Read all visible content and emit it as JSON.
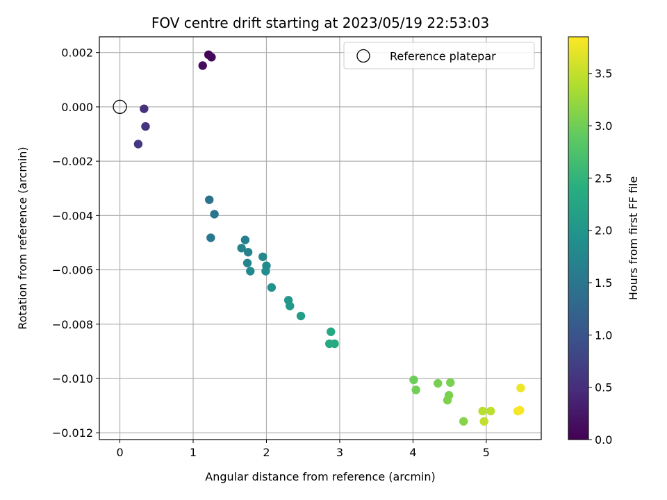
{
  "chart_data": {
    "type": "scatter",
    "title": "FOV centre drift starting at 2023/05/19 22:53:03",
    "xlabel": "Angular distance from reference (arcmin)",
    "ylabel": "Rotation from reference (arcmin)",
    "xlim": [
      -0.28,
      5.75
    ],
    "ylim": [
      -0.01225,
      0.00258
    ],
    "xticks": [
      0,
      1,
      2,
      3,
      4,
      5
    ],
    "yticks": [
      0.002,
      0.0,
      -0.002,
      -0.004,
      -0.006,
      -0.008,
      -0.01,
      -0.012
    ],
    "ytick_labels": [
      "0.002",
      "0.000",
      "−0.002",
      "−0.004",
      "−0.006",
      "−0.008",
      "−0.010",
      "−0.012"
    ],
    "grid": true,
    "colorscale": "viridis",
    "colorbar": {
      "label": "Hours from first FF file",
      "range": [
        0.0,
        3.85
      ],
      "ticks": [
        0.0,
        0.5,
        1.0,
        1.5,
        2.0,
        2.5,
        3.0,
        3.5
      ],
      "tick_labels": [
        "0.0",
        "0.5",
        "1.0",
        "1.5",
        "2.0",
        "2.5",
        "3.0",
        "3.5"
      ]
    },
    "legend": {
      "placement": "top-right",
      "entries": [
        "Reference platepar"
      ]
    },
    "reference_point": {
      "x": 0.0,
      "y": 0.0
    },
    "points": [
      {
        "x": 1.21,
        "y": 0.00192,
        "hours": 0.05
      },
      {
        "x": 1.25,
        "y": 0.00183,
        "hours": 0.08
      },
      {
        "x": 1.13,
        "y": 0.00152,
        "hours": 0.12
      },
      {
        "x": 0.33,
        "y": -7e-05,
        "hours": 0.55
      },
      {
        "x": 0.35,
        "y": -0.00072,
        "hours": 0.6
      },
      {
        "x": 0.25,
        "y": -0.00137,
        "hours": 0.65
      },
      {
        "x": 1.22,
        "y": -0.00342,
        "hours": 1.45
      },
      {
        "x": 1.29,
        "y": -0.00395,
        "hours": 1.5
      },
      {
        "x": 1.24,
        "y": -0.00482,
        "hours": 1.55
      },
      {
        "x": 1.71,
        "y": -0.0049,
        "hours": 1.65
      },
      {
        "x": 1.66,
        "y": -0.0052,
        "hours": 1.7
      },
      {
        "x": 1.75,
        "y": -0.00535,
        "hours": 1.72
      },
      {
        "x": 1.74,
        "y": -0.00575,
        "hours": 1.75
      },
      {
        "x": 1.95,
        "y": -0.00552,
        "hours": 1.8
      },
      {
        "x": 1.78,
        "y": -0.00605,
        "hours": 1.82
      },
      {
        "x": 2.0,
        "y": -0.00585,
        "hours": 1.85
      },
      {
        "x": 1.99,
        "y": -0.00605,
        "hours": 1.88
      },
      {
        "x": 2.07,
        "y": -0.00665,
        "hours": 1.95
      },
      {
        "x": 2.3,
        "y": -0.00712,
        "hours": 2.05
      },
      {
        "x": 2.32,
        "y": -0.00733,
        "hours": 2.08
      },
      {
        "x": 2.47,
        "y": -0.0077,
        "hours": 2.15
      },
      {
        "x": 2.88,
        "y": -0.00828,
        "hours": 2.3
      },
      {
        "x": 2.86,
        "y": -0.00872,
        "hours": 2.33
      },
      {
        "x": 2.93,
        "y": -0.00872,
        "hours": 2.36
      },
      {
        "x": 4.01,
        "y": -0.01005,
        "hours": 3.0
      },
      {
        "x": 4.04,
        "y": -0.01042,
        "hours": 3.02
      },
      {
        "x": 4.34,
        "y": -0.01018,
        "hours": 3.05
      },
      {
        "x": 4.51,
        "y": -0.01015,
        "hours": 3.07
      },
      {
        "x": 4.49,
        "y": -0.01062,
        "hours": 3.08
      },
      {
        "x": 4.47,
        "y": -0.0108,
        "hours": 3.1
      },
      {
        "x": 4.69,
        "y": -0.01158,
        "hours": 3.15
      },
      {
        "x": 4.95,
        "y": -0.0112,
        "hours": 3.45
      },
      {
        "x": 5.06,
        "y": -0.0112,
        "hours": 3.47
      },
      {
        "x": 4.97,
        "y": -0.01158,
        "hours": 3.5
      },
      {
        "x": 5.47,
        "y": -0.01035,
        "hours": 3.75
      },
      {
        "x": 5.43,
        "y": -0.0112,
        "hours": 3.78
      },
      {
        "x": 5.46,
        "y": -0.01117,
        "hours": 3.82
      }
    ]
  }
}
